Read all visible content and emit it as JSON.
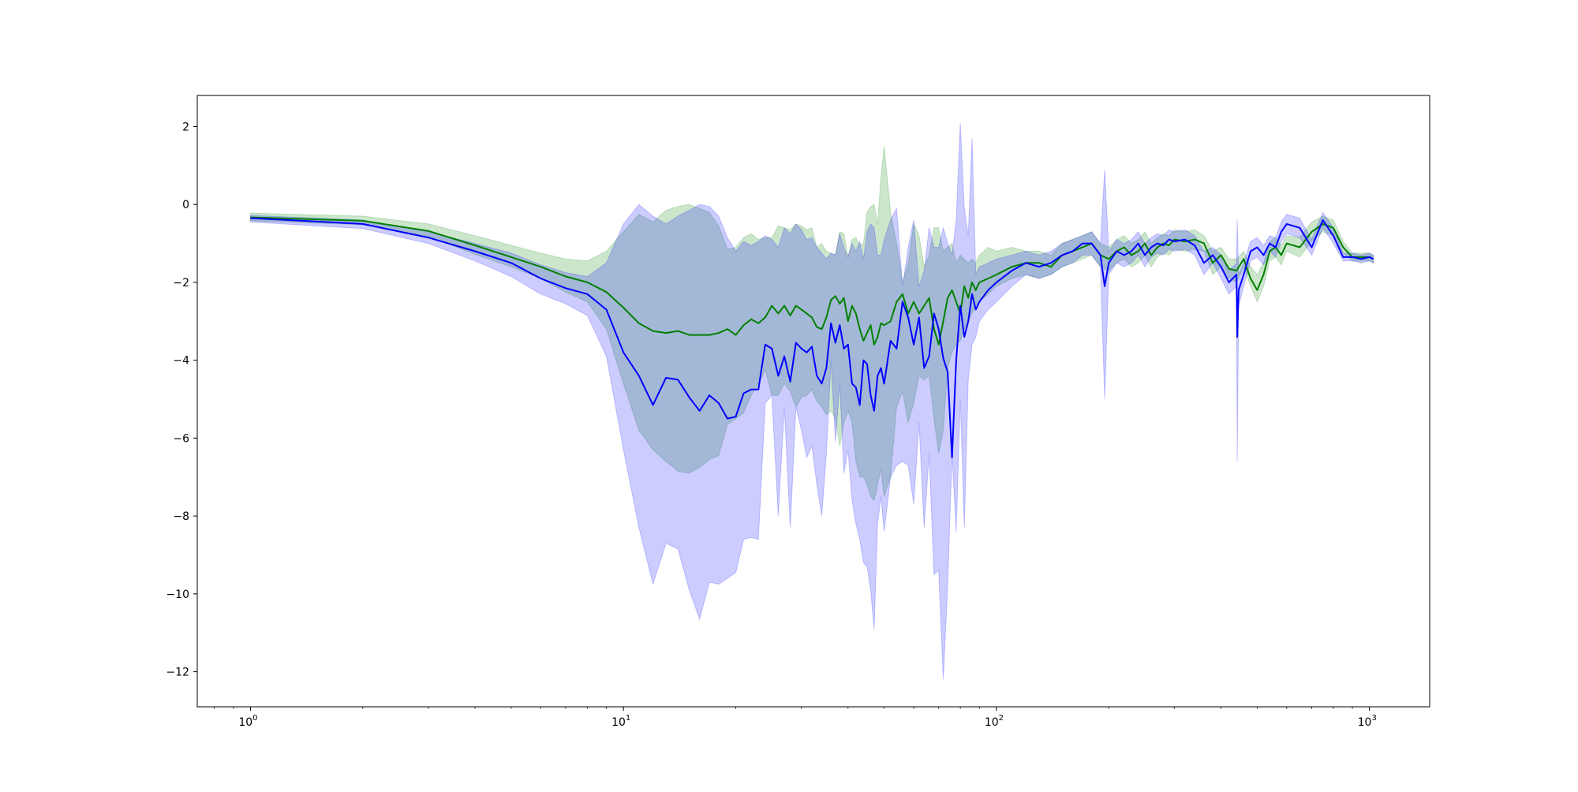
{
  "chart_data": {
    "type": "line",
    "title": "",
    "xlabel": "",
    "ylabel": "",
    "xscale": "log",
    "xlim": [
      0.72,
      1450
    ],
    "ylim": [
      -12.9,
      2.8
    ],
    "grid": false,
    "legend": "none",
    "x_ticks": [
      {
        "value": 1,
        "base": "10",
        "exp": "0"
      },
      {
        "value": 10,
        "base": "10",
        "exp": "1"
      },
      {
        "value": 100,
        "base": "10",
        "exp": "2"
      },
      {
        "value": 1000,
        "base": "10",
        "exp": "3"
      }
    ],
    "y_ticks": [
      {
        "value": 2,
        "label": "2"
      },
      {
        "value": 0,
        "label": "0"
      },
      {
        "value": -2,
        "label": "−2"
      },
      {
        "value": -4,
        "label": "−4"
      },
      {
        "value": -6,
        "label": "−6"
      },
      {
        "value": -8,
        "label": "−8"
      },
      {
        "value": -10,
        "label": "−10"
      },
      {
        "value": -12,
        "label": "−12"
      }
    ],
    "series": [
      {
        "color": "#008000",
        "band_color": "#008000",
        "band_opacity": 0.2,
        "x": [
          1,
          2,
          3,
          4,
          5,
          6,
          7,
          8,
          9,
          10,
          11,
          12,
          13,
          14,
          15,
          16,
          17,
          18,
          19,
          20,
          21,
          22,
          23,
          24,
          25,
          26,
          27,
          28,
          29,
          30,
          31,
          32,
          33,
          34,
          35,
          36,
          37,
          38,
          39,
          40,
          41,
          42,
          43,
          44,
          45,
          46,
          47,
          48,
          49,
          50,
          52,
          54,
          56,
          58,
          60,
          62,
          64,
          66,
          68,
          70,
          72,
          74,
          76,
          78,
          80,
          82,
          84,
          86,
          88,
          90,
          95,
          100,
          110,
          120,
          130,
          140,
          150,
          160,
          170,
          180,
          190,
          200,
          210,
          220,
          230,
          240,
          250,
          260,
          270,
          280,
          290,
          300,
          320,
          340,
          360,
          380,
          400,
          420,
          440,
          460,
          480,
          500,
          520,
          540,
          560,
          580,
          600,
          650,
          700,
          750,
          800,
          850,
          900,
          950,
          1000,
          1024
        ],
        "y": [
          -0.33,
          -0.42,
          -0.68,
          -1.05,
          -1.35,
          -1.6,
          -1.85,
          -2.0,
          -2.25,
          -2.65,
          -3.05,
          -3.25,
          -3.3,
          -3.25,
          -3.35,
          -3.35,
          -3.35,
          -3.3,
          -3.2,
          -3.35,
          -3.1,
          -2.95,
          -3.05,
          -2.9,
          -2.6,
          -2.8,
          -2.6,
          -2.85,
          -2.6,
          -2.7,
          -2.8,
          -2.9,
          -3.15,
          -3.2,
          -2.9,
          -2.45,
          -2.35,
          -2.55,
          -2.4,
          -3.0,
          -2.6,
          -2.8,
          -3.2,
          -3.5,
          -3.3,
          -3.1,
          -3.6,
          -3.4,
          -3.05,
          -3.1,
          -3.0,
          -2.5,
          -2.3,
          -2.8,
          -2.5,
          -2.8,
          -2.6,
          -2.4,
          -3.2,
          -3.6,
          -3.0,
          -2.4,
          -2.2,
          -2.5,
          -2.8,
          -2.1,
          -2.4,
          -2.0,
          -2.2,
          -2.0,
          -1.9,
          -1.8,
          -1.6,
          -1.5,
          -1.5,
          -1.6,
          -1.3,
          -1.2,
          -1.1,
          -1.0,
          -1.3,
          -1.4,
          -1.2,
          -1.1,
          -1.3,
          -1.2,
          -1.0,
          -1.3,
          -1.1,
          -1.0,
          -1.05,
          -0.9,
          -0.95,
          -0.9,
          -1.0,
          -1.5,
          -1.3,
          -1.65,
          -1.7,
          -1.4,
          -1.9,
          -2.2,
          -1.8,
          -1.2,
          -1.1,
          -1.3,
          -1.0,
          -1.1,
          -0.7,
          -0.5,
          -0.6,
          -1.1,
          -1.35,
          -1.35,
          -1.35,
          -1.4
        ],
        "upper": [
          -0.22,
          -0.3,
          -0.5,
          -0.8,
          -1.05,
          -1.25,
          -1.4,
          -1.45,
          -1.2,
          -0.7,
          -0.25,
          -0.45,
          -0.15,
          -0.05,
          0.0,
          -0.1,
          -0.2,
          -0.55,
          -1.15,
          -1.1,
          -0.85,
          -0.75,
          -0.9,
          -0.85,
          -0.85,
          -0.55,
          -0.6,
          -0.65,
          -0.5,
          -0.55,
          -0.65,
          -0.6,
          -1.1,
          -1.0,
          -1.2,
          -1.25,
          -1.3,
          -0.7,
          -0.75,
          -1.35,
          -0.9,
          -0.85,
          -1.05,
          -1.0,
          -0.2,
          -0.05,
          0.0,
          -0.5,
          0.7,
          1.5,
          -0.2,
          -1.0,
          -2.0,
          -1.5,
          -0.5,
          -0.8,
          -1.6,
          -1.3,
          -0.6,
          -0.6,
          -1.2,
          -1.1,
          -1.0,
          -1.5,
          -1.3,
          -1.4,
          -1.5,
          -1.4,
          -1.5,
          -1.3,
          -1.1,
          -1.2,
          -1.1,
          -1.2,
          -1.2,
          -1.3,
          -1.0,
          -0.9,
          -0.8,
          -0.7,
          -1.0,
          -1.1,
          -0.9,
          -0.8,
          -1.0,
          -0.9,
          -0.7,
          -1.0,
          -0.85,
          -0.75,
          -0.8,
          -0.65,
          -0.7,
          -0.65,
          -0.8,
          -1.2,
          -1.1,
          -1.4,
          -1.4,
          -1.2,
          -1.6,
          -1.8,
          -1.5,
          -0.95,
          -0.85,
          -1.05,
          -0.8,
          -0.85,
          -0.45,
          -0.3,
          -0.4,
          -0.95,
          -1.25,
          -1.25,
          -1.25,
          -1.3
        ],
        "lower": [
          -0.42,
          -0.52,
          -0.82,
          -1.28,
          -1.6,
          -1.9,
          -2.25,
          -2.5,
          -3.2,
          -4.6,
          -5.8,
          -6.3,
          -6.6,
          -6.85,
          -6.9,
          -6.75,
          -6.55,
          -6.45,
          -5.65,
          -5.5,
          -5.35,
          -4.9,
          -4.6,
          -4.25,
          -4.9,
          -4.9,
          -4.6,
          -4.8,
          -5.2,
          -4.95,
          -4.9,
          -4.75,
          -5.05,
          -5.2,
          -5.4,
          -5.3,
          -5.5,
          -6.2,
          -5.6,
          -5.3,
          -5.6,
          -6.6,
          -7.0,
          -7.0,
          -7.2,
          -7.5,
          -7.6,
          -7.2,
          -6.8,
          -7.5,
          -7.0,
          -5.2,
          -4.8,
          -5.6,
          -5.1,
          -4.4,
          -4.5,
          -4.4,
          -5.5,
          -6.4,
          -5.8,
          -4.2,
          -3.8,
          -3.6,
          -3.5,
          -3.2,
          -3.0,
          -2.8,
          -2.6,
          -2.5,
          -2.3,
          -2.1,
          -1.9,
          -1.8,
          -1.9,
          -1.8,
          -1.6,
          -1.5,
          -1.4,
          -1.3,
          -1.6,
          -1.7,
          -1.5,
          -1.4,
          -1.6,
          -1.5,
          -1.3,
          -1.6,
          -1.35,
          -1.25,
          -1.3,
          -1.15,
          -1.2,
          -1.15,
          -1.2,
          -1.8,
          -1.6,
          -1.9,
          -2.0,
          -1.6,
          -2.1,
          -2.5,
          -2.1,
          -1.45,
          -1.35,
          -1.55,
          -1.2,
          -1.35,
          -0.95,
          -0.7,
          -0.8,
          -1.25,
          -1.45,
          -1.45,
          -1.45,
          -1.5
        ]
      },
      {
        "color": "#0000ff",
        "band_color": "#0000ff",
        "band_opacity": 0.2,
        "x": [
          1,
          2,
          3,
          4,
          5,
          6,
          7,
          8,
          9,
          10,
          11,
          12,
          13,
          14,
          15,
          16,
          17,
          18,
          19,
          20,
          21,
          22,
          23,
          24,
          25,
          26,
          27,
          28,
          29,
          30,
          31,
          32,
          33,
          34,
          35,
          36,
          37,
          38,
          39,
          40,
          41,
          42,
          43,
          44,
          45,
          46,
          47,
          48,
          49,
          50,
          52,
          54,
          56,
          58,
          60,
          62,
          64,
          66,
          68,
          70,
          72,
          74,
          76,
          78,
          80,
          82,
          84,
          86,
          88,
          90,
          95,
          100,
          110,
          120,
          130,
          140,
          150,
          160,
          170,
          180,
          190,
          195,
          200,
          210,
          220,
          230,
          240,
          250,
          260,
          270,
          280,
          290,
          300,
          320,
          340,
          360,
          380,
          400,
          420,
          440,
          442,
          446,
          460,
          480,
          500,
          520,
          540,
          560,
          580,
          600,
          650,
          700,
          750,
          800,
          850,
          900,
          950,
          1000,
          1024
        ],
        "y": [
          -0.35,
          -0.5,
          -0.85,
          -1.2,
          -1.5,
          -1.9,
          -2.15,
          -2.3,
          -2.7,
          -3.8,
          -4.4,
          -5.15,
          -4.45,
          -4.5,
          -4.95,
          -5.3,
          -4.9,
          -5.1,
          -5.5,
          -5.45,
          -4.85,
          -4.75,
          -4.75,
          -3.6,
          -3.7,
          -4.4,
          -3.9,
          -4.55,
          -3.55,
          -3.7,
          -3.8,
          -3.65,
          -4.4,
          -4.6,
          -4.2,
          -3.05,
          -3.55,
          -3.1,
          -3.7,
          -3.6,
          -4.6,
          -4.7,
          -5.15,
          -4.0,
          -4.1,
          -4.9,
          -5.3,
          -4.4,
          -4.2,
          -4.6,
          -3.5,
          -3.7,
          -2.5,
          -2.9,
          -3.6,
          -2.9,
          -4.2,
          -3.9,
          -2.8,
          -3.2,
          -3.95,
          -4.3,
          -6.5,
          -4.0,
          -2.6,
          -3.4,
          -3.0,
          -2.3,
          -2.7,
          -2.5,
          -2.2,
          -2.0,
          -1.7,
          -1.5,
          -1.6,
          -1.5,
          -1.3,
          -1.2,
          -1.0,
          -1.0,
          -1.3,
          -2.1,
          -1.5,
          -1.2,
          -1.3,
          -1.2,
          -1.0,
          -1.3,
          -1.1,
          -1.0,
          -1.05,
          -0.9,
          -0.95,
          -0.9,
          -1.05,
          -1.5,
          -1.3,
          -1.6,
          -2.0,
          -1.8,
          -3.4,
          -2.2,
          -1.8,
          -1.2,
          -1.1,
          -1.3,
          -1.0,
          -1.1,
          -0.7,
          -0.5,
          -0.6,
          -1.1,
          -0.4,
          -0.8,
          -1.35,
          -1.35,
          -1.4,
          -1.35,
          -1.4
        ],
        "upper": [
          -0.28,
          -0.4,
          -0.7,
          -1.0,
          -1.25,
          -1.55,
          -1.75,
          -1.85,
          -1.5,
          -0.5,
          0.0,
          -0.3,
          -0.5,
          -0.3,
          -0.15,
          0.0,
          -0.05,
          -0.3,
          -0.85,
          -1.2,
          -0.95,
          -1.05,
          -0.95,
          -0.8,
          -0.9,
          -1.1,
          -0.6,
          -0.75,
          -0.5,
          -0.65,
          -0.9,
          -0.85,
          -1.1,
          -1.25,
          -1.4,
          -1.25,
          -1.3,
          -0.75,
          -1.1,
          -1.35,
          -1.0,
          -1.2,
          -0.95,
          -1.4,
          -0.7,
          -0.5,
          -0.6,
          -1.3,
          -1.3,
          -0.9,
          -0.4,
          -0.1,
          -2.1,
          -1.1,
          -0.4,
          -2.1,
          -1.7,
          -0.6,
          -1.1,
          -1.1,
          -0.6,
          -1.0,
          -1.3,
          -0.4,
          2.1,
          -0.1,
          -0.8,
          1.7,
          -1.8,
          -1.6,
          -1.5,
          -1.4,
          -1.3,
          -1.2,
          -1.3,
          -1.2,
          -1.0,
          -0.9,
          -0.8,
          -0.7,
          -1.0,
          0.9,
          -1.2,
          -0.9,
          -1.0,
          -0.9,
          -0.7,
          -1.0,
          -0.85,
          -0.75,
          -0.8,
          -0.65,
          -0.7,
          -0.65,
          -0.8,
          -1.2,
          -1.1,
          -1.3,
          -1.7,
          -1.5,
          -0.4,
          -1.8,
          -1.5,
          -0.95,
          -0.85,
          -1.05,
          -0.8,
          -0.85,
          -0.45,
          -0.25,
          -0.35,
          -0.9,
          -0.2,
          -0.6,
          -1.25,
          -1.25,
          -1.3,
          -1.25,
          -1.3
        ],
        "lower": [
          -0.45,
          -0.62,
          -1.0,
          -1.45,
          -1.85,
          -2.3,
          -2.55,
          -2.85,
          -3.9,
          -6.3,
          -8.3,
          -9.75,
          -8.7,
          -8.85,
          -9.9,
          -10.65,
          -9.7,
          -9.75,
          -9.6,
          -9.45,
          -8.6,
          -8.55,
          -8.6,
          -5.1,
          -4.9,
          -8.0,
          -5.2,
          -8.3,
          -5.2,
          -5.8,
          -6.5,
          -6.2,
          -7.2,
          -8.0,
          -6.4,
          -4.0,
          -6.1,
          -4.6,
          -6.9,
          -6.3,
          -7.6,
          -8.2,
          -8.6,
          -9.2,
          -9.3,
          -9.9,
          -10.9,
          -8.2,
          -7.5,
          -8.4,
          -7.0,
          -6.7,
          -6.6,
          -6.7,
          -7.7,
          -5.6,
          -8.3,
          -6.4,
          -9.5,
          -9.4,
          -12.2,
          -9.8,
          -6.4,
          -8.4,
          -5.0,
          -8.3,
          -4.5,
          -3.6,
          -3.4,
          -3.0,
          -2.7,
          -2.5,
          -2.1,
          -1.8,
          -1.9,
          -1.8,
          -1.6,
          -1.5,
          -1.3,
          -1.3,
          -1.6,
          -5.0,
          -1.8,
          -1.5,
          -1.6,
          -1.5,
          -1.3,
          -1.6,
          -1.35,
          -1.25,
          -1.3,
          -1.15,
          -1.2,
          -1.15,
          -1.3,
          -1.8,
          -1.5,
          -1.9,
          -2.3,
          -2.1,
          -6.6,
          -2.6,
          -2.1,
          -1.45,
          -1.35,
          -1.55,
          -1.2,
          -1.35,
          -0.95,
          -0.75,
          -0.85,
          -1.3,
          -0.6,
          -1.0,
          -1.45,
          -1.45,
          -1.5,
          -1.45,
          -1.5
        ]
      }
    ]
  }
}
